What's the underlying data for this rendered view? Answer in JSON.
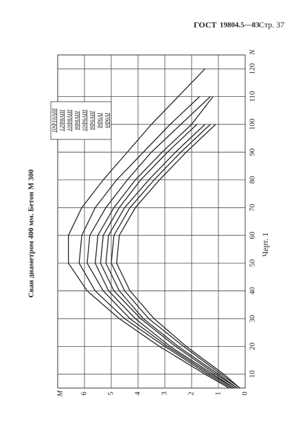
{
  "header": {
    "left": "ГОСТ",
    "number": "19804.5—83",
    "page": "Стр. 37"
  },
  "caption": "Черт. 1",
  "chart_data": {
    "type": "line",
    "title": "Сваи диаметром 400 мм. Бетон М 300",
    "x_label": "N",
    "y_label": "M",
    "x": [
      5,
      10,
      20,
      30,
      40,
      50,
      60,
      70,
      80,
      90,
      100,
      110,
      120
    ],
    "xlim": [
      5,
      125
    ],
    "xticks": [
      10,
      20,
      30,
      40,
      50,
      60,
      70,
      80,
      90,
      100,
      110,
      120
    ],
    "ylim": [
      0,
      7
    ],
    "yticks": [
      0,
      1,
      2,
      3,
      4,
      5,
      6
    ],
    "grid": true,
    "series": [
      {
        "name": "10Ф10АIII",
        "color": "#222",
        "values": [
          0.6,
          1.5,
          3.2,
          4.7,
          5.9,
          6.6,
          6.6,
          6.1,
          5.3,
          4.4,
          3.5,
          2.5,
          1.5
        ]
      },
      {
        "name": "12Ф8АIII",
        "color": "#222",
        "values": [
          0.5,
          1.4,
          3.0,
          4.5,
          5.6,
          6.2,
          6.1,
          5.6,
          4.8,
          3.8,
          2.8,
          1.7,
          null
        ]
      },
      {
        "name": "10Ф8АIII",
        "color": "#222",
        "values": [
          0.4,
          1.3,
          2.9,
          4.3,
          5.3,
          5.9,
          5.8,
          5.2,
          4.4,
          3.5,
          2.4,
          1.3,
          null
        ]
      },
      {
        "name": "8Ф8АIII",
        "color": "#222",
        "values": [
          0.4,
          1.2,
          2.8,
          4.1,
          5.1,
          5.6,
          5.5,
          4.9,
          4.1,
          3.1,
          2.0,
          1.2,
          null
        ]
      },
      {
        "name": "10Ф6АIII",
        "color": "#222",
        "values": [
          0.3,
          1.1,
          2.6,
          3.9,
          4.9,
          5.4,
          5.3,
          4.7,
          3.9,
          2.9,
          1.8,
          null,
          null
        ]
      },
      {
        "name": "8Ф6АIII",
        "color": "#222",
        "values": [
          0.3,
          1.0,
          2.5,
          3.8,
          4.7,
          5.2,
          5.1,
          4.5,
          3.6,
          2.6,
          1.5,
          null,
          null
        ]
      },
      {
        "name": "8Ф6АI",
        "color": "#222",
        "values": [
          0.2,
          0.9,
          2.3,
          3.6,
          4.5,
          5.0,
          4.9,
          4.3,
          3.4,
          2.4,
          1.3,
          null,
          null
        ]
      },
      {
        "name": "6Ф6АI",
        "color": "#222",
        "values": [
          0.2,
          0.8,
          2.2,
          3.4,
          4.3,
          4.8,
          4.7,
          4.1,
          3.2,
          2.2,
          1.1,
          null,
          null
        ]
      }
    ]
  }
}
